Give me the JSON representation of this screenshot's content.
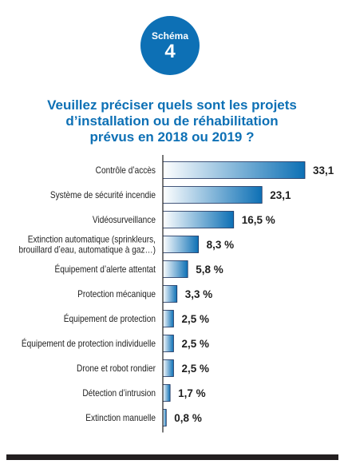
{
  "badge": {
    "label": "Schéma",
    "number": "4"
  },
  "title_lines": [
    "Veuillez préciser quels sont les projets",
    "d’installation ou de réhabilitation",
    "prévus en 2018 ou 2019 ?"
  ],
  "colors": {
    "accent": "#0d70b5",
    "bar_dark": "#0d70b5",
    "bar_light": "#ffffff",
    "rule": "#231f20"
  },
  "chart_data": {
    "type": "bar",
    "orientation": "horizontal",
    "categories": [
      [
        "Contrôle d’accès"
      ],
      [
        "Système de sécurité incendie"
      ],
      [
        "Vidéosurveillance"
      ],
      [
        "Extinction automatique (sprinkleurs,",
        "brouillard d’eau, automatique à gaz…)"
      ],
      [
        "Équipement d’alerte attentat"
      ],
      [
        "Protection mécanique"
      ],
      [
        "Équipement de protection"
      ],
      [
        "Équipement de protection individuelle"
      ],
      [
        "Drone et robot rondier"
      ],
      [
        "Détection d’intrusion"
      ],
      [
        "Extinction manuelle"
      ]
    ],
    "values": [
      33.1,
      23.1,
      16.5,
      8.3,
      5.8,
      3.3,
      2.5,
      2.5,
      2.5,
      1.7,
      0.8
    ],
    "value_labels": [
      "33,1",
      "23,1",
      "16,5 %",
      "8,3 %",
      "5,8 %",
      "3,3 %",
      "2,5 %",
      "2,5 %",
      "2,5 %",
      "1,7 %",
      "0,8 %"
    ],
    "bar_fill": "gradient"
  }
}
